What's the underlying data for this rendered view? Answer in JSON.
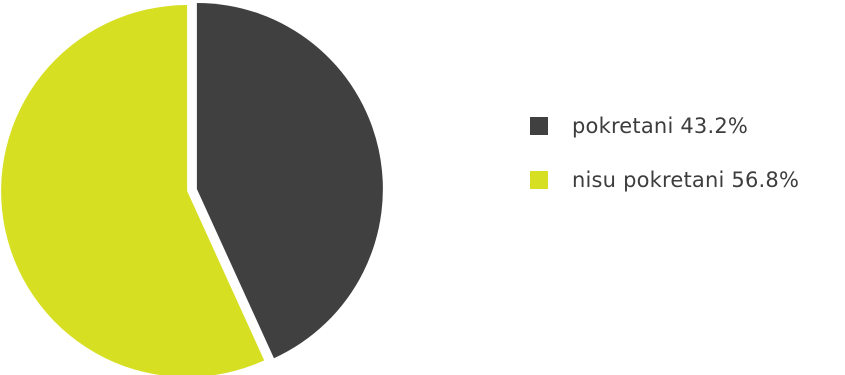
{
  "chart_data": {
    "type": "pie",
    "slices": [
      {
        "label": "pokretani",
        "value": 43.2,
        "display": "pokretani 43.2%",
        "color": "#404040"
      },
      {
        "label": "nisu pokretani",
        "value": 56.8,
        "display": "nisu pokretani 56.8%",
        "color": "#d6df22"
      }
    ],
    "legend_position": "right",
    "start_angle": "top",
    "direction": "clockwise",
    "exploded": true
  }
}
